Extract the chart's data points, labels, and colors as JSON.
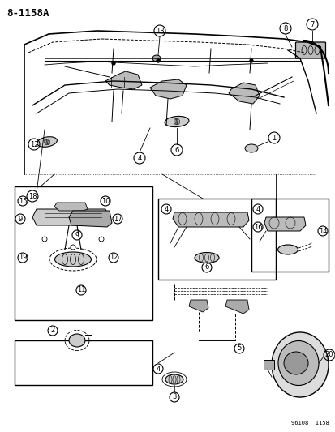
{
  "title": "8-1158A",
  "footer": "96108  1158",
  "bg_color": "#ffffff",
  "line_color": "#000000",
  "fig_width": 4.14,
  "fig_height": 5.33,
  "dpi": 100
}
